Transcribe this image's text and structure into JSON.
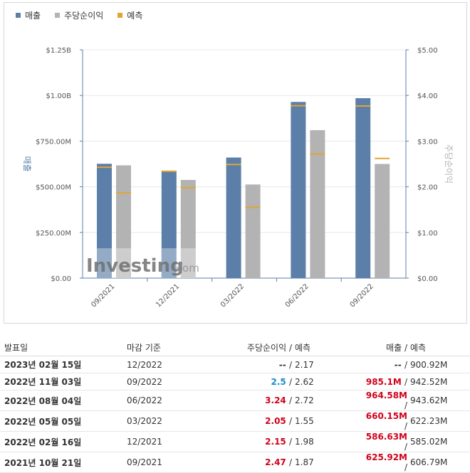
{
  "chart_data": {
    "type": "bar",
    "legend": [
      {
        "label": "매출",
        "color": "#5b7fa8"
      },
      {
        "label": "주당순이익",
        "color": "#b3b3b3"
      },
      {
        "label": "예측",
        "color": "#e2a534"
      }
    ],
    "categories": [
      "09/2021",
      "12/2021",
      "03/2022",
      "06/2022",
      "09/2022"
    ],
    "series": [
      {
        "name": "매출",
        "axis": "left",
        "values": [
          625.92,
          586.63,
          660.15,
          964.58,
          985.1
        ],
        "forecast": [
          606.79,
          585.02,
          622.23,
          943.62,
          942.52
        ]
      },
      {
        "name": "주당순이익",
        "axis": "right",
        "values": [
          2.47,
          2.15,
          2.05,
          3.24,
          2.5
        ],
        "forecast": [
          1.87,
          1.98,
          1.55,
          2.72,
          2.62
        ]
      }
    ],
    "left_axis": {
      "label": "매출",
      "ticks": [
        "$0.00",
        "$250.00M",
        "$500.00M",
        "$750.00M",
        "$1.00B",
        "$1.25B"
      ],
      "ylim": [
        0,
        1250
      ]
    },
    "right_axis": {
      "label": "주당순이익",
      "ticks": [
        "$0.00",
        "$1.00",
        "$2.00",
        "$3.00",
        "$4.00",
        "$5.00"
      ],
      "ylim": [
        0,
        5
      ]
    },
    "watermark": "Investing.com"
  },
  "table": {
    "headers": {
      "date": "발표일",
      "period": "마감 기준",
      "eps": "주당순이익",
      "eps_forecast": "예측",
      "revenue": "매출",
      "revenue_forecast": "예측",
      "sep": "/"
    },
    "rows": [
      {
        "date": "2023년 02월 15일",
        "period": "12/2022",
        "eps": "--",
        "eps_forecast": "2.17",
        "revenue": "--",
        "revenue_forecast": "900.92M",
        "eps_state": "neutral",
        "rev_state": "neutral"
      },
      {
        "date": "2022년 11월 03일",
        "period": "09/2022",
        "eps": "2.5",
        "eps_forecast": "2.62",
        "revenue": "985.1M",
        "revenue_forecast": "942.52M",
        "eps_state": "neg",
        "rev_state": "pos"
      },
      {
        "date": "2022년 08월 04일",
        "period": "06/2022",
        "eps": "3.24",
        "eps_forecast": "2.72",
        "revenue": "964.58M",
        "revenue_forecast": "943.62M",
        "eps_state": "pos",
        "rev_state": "pos"
      },
      {
        "date": "2022년 05월 05일",
        "period": "03/2022",
        "eps": "2.05",
        "eps_forecast": "1.55",
        "revenue": "660.15M",
        "revenue_forecast": "622.23M",
        "eps_state": "pos",
        "rev_state": "pos"
      },
      {
        "date": "2022년 02월 16일",
        "period": "12/2021",
        "eps": "2.15",
        "eps_forecast": "1.98",
        "revenue": "586.63M",
        "revenue_forecast": "585.02M",
        "eps_state": "pos",
        "rev_state": "pos"
      },
      {
        "date": "2021년 10월 21일",
        "period": "09/2021",
        "eps": "2.47",
        "eps_forecast": "1.87",
        "revenue": "625.92M",
        "revenue_forecast": "606.79M",
        "eps_state": "pos",
        "rev_state": "pos"
      }
    ]
  }
}
